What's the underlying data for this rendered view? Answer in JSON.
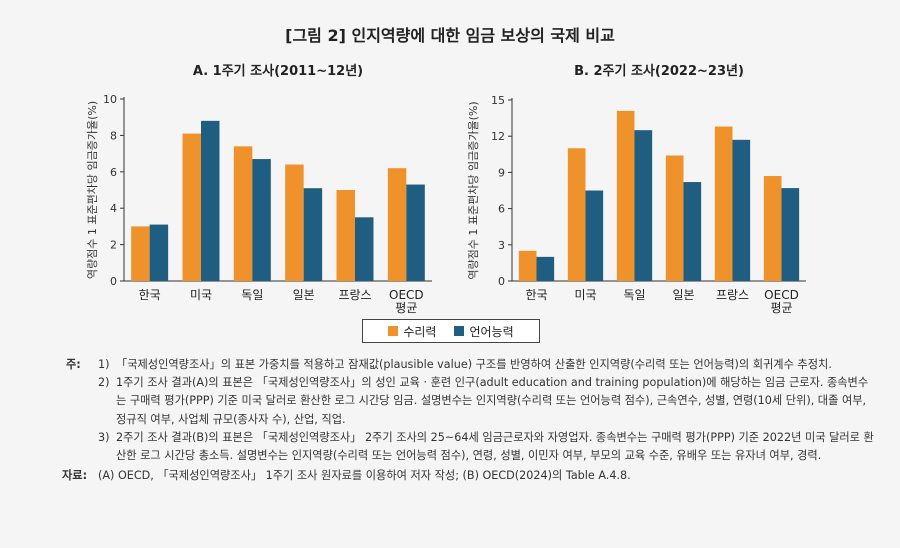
{
  "figure_title": "[그림 2] 인지역량에 대한 임금 보상의 국제 비교",
  "colors": {
    "numeracy": "#F0922B",
    "literacy": "#1F5E80"
  },
  "legend": [
    {
      "name": "수리력",
      "color": "#F0922B"
    },
    {
      "name": "언어능력",
      "color": "#1F5E80"
    }
  ],
  "chart_data": [
    {
      "type": "bar",
      "title": "A. 1주기 조사(2011~12년)",
      "ylabel": "역량점수 1 표준편차당 임금증가율(%)",
      "categories": [
        "한국",
        "미국",
        "독일",
        "일본",
        "프랑스",
        "OECD 평균"
      ],
      "ylim": [
        0,
        10
      ],
      "yticks": [
        0,
        2,
        4,
        6,
        8,
        10
      ],
      "series": [
        {
          "name": "수리력",
          "values": [
            3.0,
            8.1,
            7.4,
            6.4,
            5.0,
            6.2
          ]
        },
        {
          "name": "언어능력",
          "values": [
            3.1,
            8.8,
            6.7,
            5.1,
            3.5,
            5.3
          ]
        }
      ]
    },
    {
      "type": "bar",
      "title": "B. 2주기 조사(2022~23년)",
      "ylabel": "역량점수 1 표준편차당 임금증가율(%)",
      "categories": [
        "한국",
        "미국",
        "독일",
        "일본",
        "프랑스",
        "OECD 평균"
      ],
      "ylim": [
        0,
        15
      ],
      "yticks": [
        0,
        3,
        6,
        9,
        12,
        15
      ],
      "series": [
        {
          "name": "수리력",
          "values": [
            2.5,
            11.0,
            14.1,
            10.4,
            12.8,
            8.7
          ]
        },
        {
          "name": "언어능력",
          "values": [
            2.0,
            7.5,
            12.5,
            8.2,
            11.7,
            7.7
          ]
        }
      ]
    }
  ],
  "notes": {
    "prefix": "주:",
    "items": [
      {
        "num": "1)",
        "text": "「국제성인역량조사」의 표본 가중치를 적용하고 잠재값(plausible value) 구조를 반영하여 산출한 인지역량(수리력 또는 언어능력)의 회귀계수 추정치."
      },
      {
        "num": "2)",
        "text": "1주기 조사 결과(A)의 표본은 「국제성인역량조사」의 성인 교육 · 훈련 인구(adult education and training population)에 해당하는 임금 근로자. 종속변수는 구매력 평가(PPP) 기준 미국 달러로 환산한 로그 시간당 임금. 설명변수는 인지역량(수리력 또는 언어능력 점수), 근속연수, 성별, 연령(10세 단위), 대졸 여부, 정규직 여부, 사업체 규모(종사자 수), 산업, 직업."
      },
      {
        "num": "3)",
        "text": "2주기 조사 결과(B)의 표본은 「국제성인역량조사」 2주기 조사의 25~64세 임금근로자와 자영업자. 종속변수는 구매력 평가(PPP) 기준 2022년 미국 달러로 환산한 로그 시간당 총소득. 설명변수는 인지역량(수리력 또는 언어능력 점수), 연령, 성별, 이민자 여부, 부모의 교육 수준, 유배우 또는 유자녀 여부, 경력."
      }
    ]
  },
  "source": {
    "label": "자료:",
    "text": "(A) OECD, 「국제성인역량조사」 1주기 조사 원자료를 이용하여 저자 작성; (B) OECD(2024)의 Table A.4.8."
  }
}
